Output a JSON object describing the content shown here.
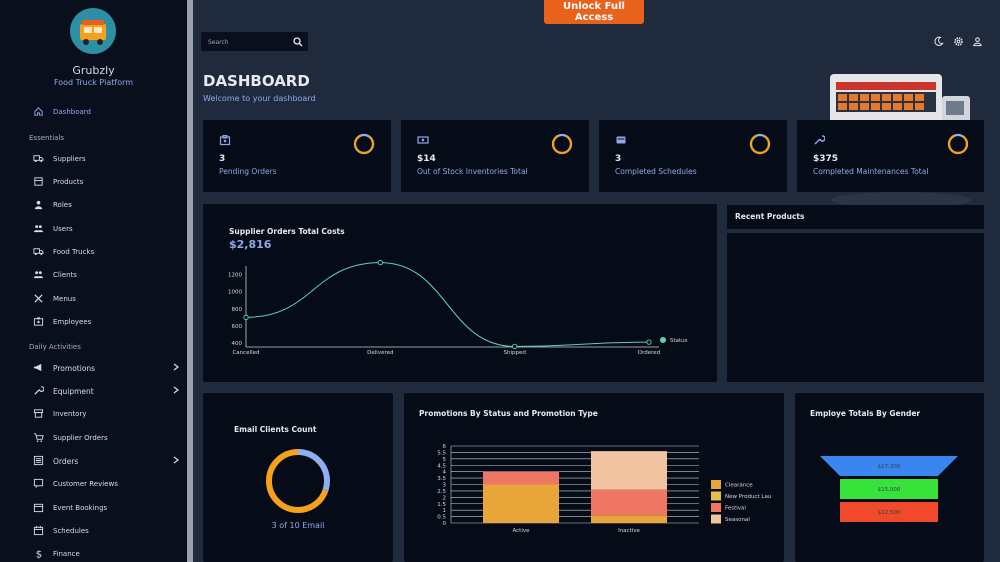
{
  "topbar": {
    "unlock_label": "Unlock Full Access",
    "search_placeholder": "Search"
  },
  "brand": {
    "name": "Grubzly",
    "subtitle": "Food Truck Platform"
  },
  "sidebar": {
    "dashboard": "Dashboard",
    "section_essentials": "Essentials",
    "essentials": [
      "Suppliers",
      "Products",
      "Roles",
      "Users",
      "Food Trucks",
      "Clients",
      "Menus",
      "Employees"
    ],
    "section_daily": "Daily Activities",
    "daily": [
      "Promotions",
      "Equipment",
      "Inventory",
      "Supplier Orders",
      "Orders",
      "Customer Reviews",
      "Event Bookings",
      "Schedules",
      "Finance"
    ]
  },
  "header": {
    "title": "DASHBOARD",
    "subtitle": "Welcome to your dashboard"
  },
  "stats": [
    {
      "value": "3",
      "label": "Pending Orders",
      "icon": "clipboard-icon"
    },
    {
      "value": "$14",
      "label": "Out of Stock Inventories Total",
      "icon": "cash-icon"
    },
    {
      "value": "3",
      "label": "Completed Schedules",
      "icon": "card-icon"
    },
    {
      "value": "$375",
      "label": "Completed Maintenances Total",
      "icon": "wrench-icon"
    }
  ],
  "supplier_chart": {
    "title": "Supplier Orders Total Costs",
    "total": "$2,816",
    "legend": "Status"
  },
  "recent_products": {
    "title": "Recent Products"
  },
  "email_card": {
    "title": "Email Clients Count",
    "caption": "3 of 10 Email"
  },
  "promotions_card": {
    "title": "Promotions By Status and Promotion Type"
  },
  "gender_card": {
    "title": "Employe Totals By Gender"
  },
  "colors": {
    "accent_orange": "#f5a21a",
    "accent_blue": "#8fa9e8",
    "line": "#5fd0b8"
  },
  "chart_data": [
    {
      "type": "line",
      "categories": [
        "Cancelled",
        "Delivered",
        "Shipped",
        "Ordered"
      ],
      "values": [
        700,
        1340,
        360,
        410
      ],
      "y_ticks": [
        "1200",
        "1000",
        "800",
        "600",
        "400"
      ],
      "ylim": [
        400,
        1300
      ],
      "legend": "Status"
    },
    {
      "type": "bar",
      "stacked": true,
      "categories": [
        "Active",
        "Inactive"
      ],
      "series": [
        {
          "name": "Clearance",
          "values": [
            3,
            0.6
          ],
          "color": "#e8a63a"
        },
        {
          "name": "New Product Lau",
          "values": [
            0,
            0
          ],
          "color": "#e3c04a"
        },
        {
          "name": "Festival",
          "values": [
            1,
            2
          ],
          "color": "#ef7564"
        },
        {
          "name": "Seasonal",
          "values": [
            0,
            3
          ],
          "color": "#f0c4a0"
        }
      ],
      "y_ticks": [
        "6",
        "5.5",
        "5",
        "4.5",
        "4",
        "3.5",
        "3",
        "2.5",
        "2",
        "1.5",
        "1",
        "0.5",
        "0"
      ],
      "ylim": [
        0,
        6
      ]
    },
    {
      "type": "funnel",
      "values": [
        "$17,300",
        "$15,000",
        "$12,500"
      ],
      "colors": [
        "#3a86f0",
        "#37e23a",
        "#f04a2a"
      ]
    },
    {
      "type": "pie",
      "values": [
        3,
        7
      ],
      "colors": [
        "#8fb0f0",
        "#f5a21a"
      ]
    }
  ]
}
